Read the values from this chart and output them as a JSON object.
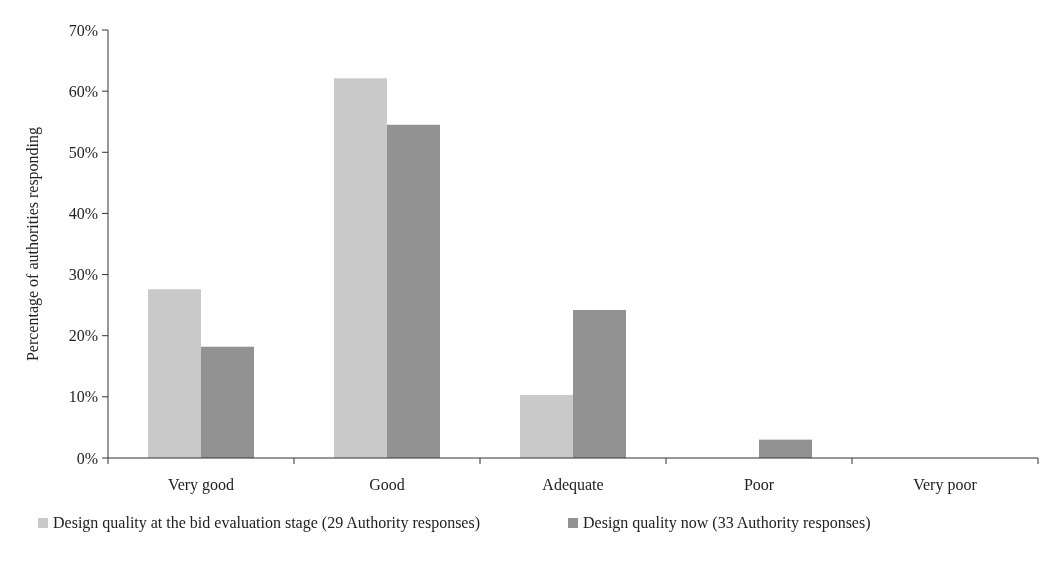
{
  "chart_data": {
    "type": "bar",
    "ylabel": "Percentage of authorities responding",
    "categories": [
      "Very good",
      "Good",
      "Adequate",
      "Poor",
      "Very poor"
    ],
    "series": [
      {
        "name": "Design quality at the bid evaluation stage (29 Authority responses)",
        "color": "#c9c9c9",
        "values": [
          27.6,
          62.1,
          10.3,
          0,
          0
        ]
      },
      {
        "name": "Design quality now (33 Authority responses)",
        "color": "#929292",
        "values": [
          18.2,
          54.5,
          24.2,
          3.0,
          0
        ]
      }
    ],
    "ylim": [
      0,
      70
    ],
    "yticks": [
      {
        "value": 0,
        "label": "0%"
      },
      {
        "value": 10,
        "label": "10%"
      },
      {
        "value": 20,
        "label": "20%"
      },
      {
        "value": 30,
        "label": "30%"
      },
      {
        "value": 40,
        "label": "40%"
      },
      {
        "value": 50,
        "label": "50%"
      },
      {
        "value": 60,
        "label": "60%"
      },
      {
        "value": 70,
        "label": "70%"
      }
    ],
    "grid": false,
    "legend": "bottom"
  }
}
